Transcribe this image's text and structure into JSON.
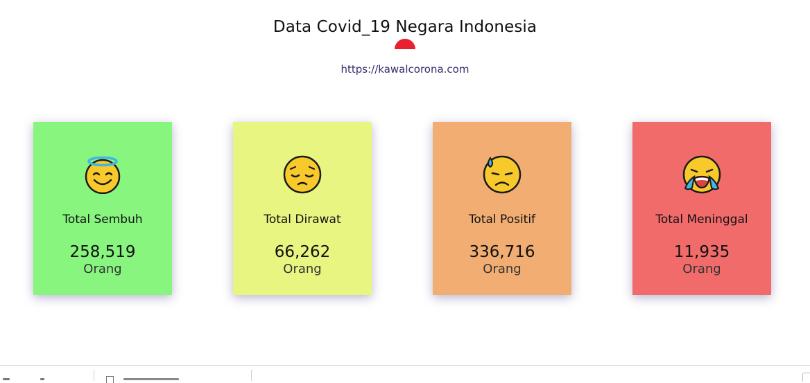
{
  "header": {
    "title": "Data Covid_19 Negara Indonesia",
    "flag_icon": "indonesia-flag-icon",
    "link_text": "https://kawalcorona.com"
  },
  "cards": [
    {
      "label": "Total Sembuh",
      "value": "258,519",
      "unit": "Orang",
      "color": "#88f57f",
      "emoji": "smiling-face-with-halo-icon"
    },
    {
      "label": "Total Dirawat",
      "value": "66,262",
      "unit": "Orang",
      "color": "#e8f581",
      "emoji": "pensive-face-icon"
    },
    {
      "label": "Total Positif",
      "value": "336,716",
      "unit": "Orang",
      "color": "#f2ad72",
      "emoji": "downcast-face-with-sweat-icon"
    },
    {
      "label": "Total Meninggal",
      "value": "11,935",
      "unit": "Orang",
      "color": "#f26b6b",
      "emoji": "loudly-crying-face-icon"
    }
  ]
}
